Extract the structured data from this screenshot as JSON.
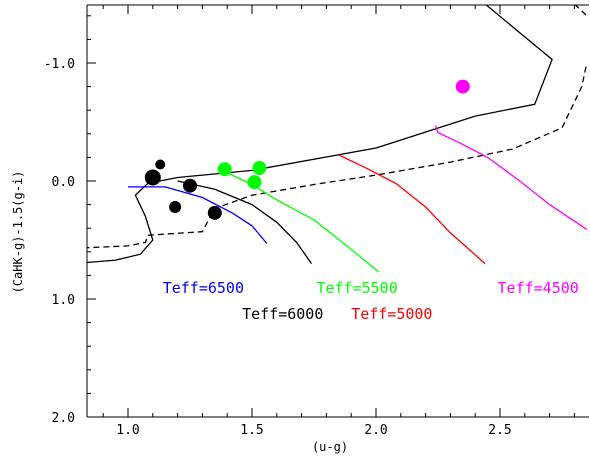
{
  "chart_data": {
    "type": "scatter",
    "title": "",
    "xlabel": "(u-g)",
    "ylabel": "(CaHK-g)-1.5(g-i)",
    "xlim": [
      0.8,
      2.85
    ],
    "ylim": [
      2.0,
      -1.5
    ],
    "y_inverted": true,
    "grid": false,
    "legend": "none",
    "x_ticks": [
      {
        "value": 1.0,
        "label": "1.0"
      },
      {
        "value": 1.5,
        "label": "1.5"
      },
      {
        "value": 2.0,
        "label": "2.0"
      },
      {
        "value": 2.5,
        "label": "2.5"
      }
    ],
    "y_ticks": [
      {
        "value": -1.0,
        "label": "-1.0"
      },
      {
        "value": 0.0,
        "label": "0.0"
      },
      {
        "value": 1.0,
        "label": "1.0"
      },
      {
        "value": 2.0,
        "label": "2.0"
      }
    ],
    "series": [
      {
        "color": "#000000",
        "marker": "circle",
        "points": [
          {
            "x": 1.1,
            "y": -0.03,
            "size": 8
          },
          {
            "x": 1.13,
            "y": -0.14,
            "size": 5
          },
          {
            "x": 1.25,
            "y": 0.04,
            "size": 7
          },
          {
            "x": 1.19,
            "y": 0.22,
            "size": 6
          },
          {
            "x": 1.35,
            "y": 0.27,
            "size": 7
          }
        ]
      },
      {
        "color": "#00ff00",
        "marker": "circle",
        "points": [
          {
            "x": 1.39,
            "y": -0.1,
            "size": 7
          },
          {
            "x": 1.53,
            "y": -0.11,
            "size": 7
          },
          {
            "x": 1.51,
            "y": 0.01,
            "size": 7
          }
        ]
      },
      {
        "color": "#ff00ff",
        "marker": "circle",
        "points": [
          {
            "x": 2.35,
            "y": -0.8,
            "size": 7
          }
        ]
      }
    ],
    "curves": [
      {
        "color": "#000000",
        "style": "solid",
        "points": [
          [
            0.78,
            0.7
          ],
          [
            0.95,
            0.67
          ],
          [
            1.05,
            0.62
          ],
          [
            1.1,
            0.5
          ],
          [
            1.07,
            0.3
          ],
          [
            1.03,
            0.12
          ],
          [
            1.08,
            0.02
          ],
          [
            1.2,
            -0.03
          ],
          [
            1.5,
            -0.09
          ],
          [
            2.0,
            -0.28
          ],
          [
            2.4,
            -0.55
          ],
          [
            2.64,
            -0.65
          ],
          [
            2.71,
            -1.03
          ],
          [
            2.44,
            -1.5
          ]
        ]
      },
      {
        "color": "#000000",
        "style": "solid",
        "points": [
          [
            1.2,
            0.0
          ],
          [
            1.35,
            0.07
          ],
          [
            1.5,
            0.2
          ],
          [
            1.6,
            0.35
          ],
          [
            1.68,
            0.52
          ],
          [
            1.74,
            0.7
          ]
        ]
      },
      {
        "color": "#000000",
        "style": "dashed",
        "points": [
          [
            0.78,
            0.57
          ],
          [
            1.0,
            0.55
          ],
          [
            1.07,
            0.52
          ],
          [
            1.08,
            0.46
          ],
          [
            1.15,
            0.45
          ],
          [
            1.3,
            0.43
          ],
          [
            1.33,
            0.31
          ],
          [
            1.34,
            0.24
          ],
          [
            1.5,
            0.12
          ],
          [
            1.75,
            0.03
          ],
          [
            2.0,
            -0.05
          ],
          [
            2.3,
            -0.16
          ],
          [
            2.55,
            -0.27
          ],
          [
            2.75,
            -0.45
          ],
          [
            2.83,
            -0.8
          ],
          [
            2.85,
            -1.0
          ]
        ]
      },
      {
        "color": "#000000",
        "style": "dashed",
        "points": [
          [
            2.8,
            -1.5
          ],
          [
            2.85,
            -1.4
          ]
        ]
      },
      {
        "color": "#0000ff",
        "style": "solid",
        "points": [
          [
            1.0,
            0.05
          ],
          [
            1.15,
            0.05
          ],
          [
            1.3,
            0.14
          ],
          [
            1.42,
            0.27
          ],
          [
            1.5,
            0.38
          ],
          [
            1.56,
            0.53
          ]
        ]
      },
      {
        "color": "#00ff00",
        "style": "solid",
        "points": [
          [
            1.39,
            -0.08
          ],
          [
            1.5,
            0.03
          ],
          [
            1.6,
            0.16
          ],
          [
            1.75,
            0.33
          ],
          [
            1.9,
            0.58
          ],
          [
            2.01,
            0.77
          ]
        ]
      },
      {
        "color": "#ff0000",
        "style": "solid",
        "points": [
          [
            1.85,
            -0.22
          ],
          [
            1.95,
            -0.12
          ],
          [
            2.08,
            0.02
          ],
          [
            2.2,
            0.22
          ],
          [
            2.3,
            0.44
          ],
          [
            2.44,
            0.7
          ]
        ]
      },
      {
        "color": "#ff00ff",
        "style": "solid",
        "points": [
          [
            2.24,
            -0.47
          ],
          [
            2.25,
            -0.41
          ],
          [
            2.34,
            -0.32
          ],
          [
            2.45,
            -0.2
          ],
          [
            2.58,
            0.0
          ],
          [
            2.7,
            0.2
          ],
          [
            2.85,
            0.41
          ]
        ]
      }
    ],
    "annotations": [
      {
        "text": "Teff=6500",
        "color": "#0000ff",
        "x": 1.14,
        "y": 0.95
      },
      {
        "text": "Teff=6000",
        "color": "#000000",
        "x": 1.46,
        "y": 1.17
      },
      {
        "text": "Teff=5500",
        "color": "#00ff00",
        "x": 1.76,
        "y": 0.95
      },
      {
        "text": "Teff=5000",
        "color": "#ff0000",
        "x": 1.9,
        "y": 1.17
      },
      {
        "text": "Teff=4500",
        "color": "#ff00ff",
        "x": 2.49,
        "y": 0.95
      }
    ]
  }
}
